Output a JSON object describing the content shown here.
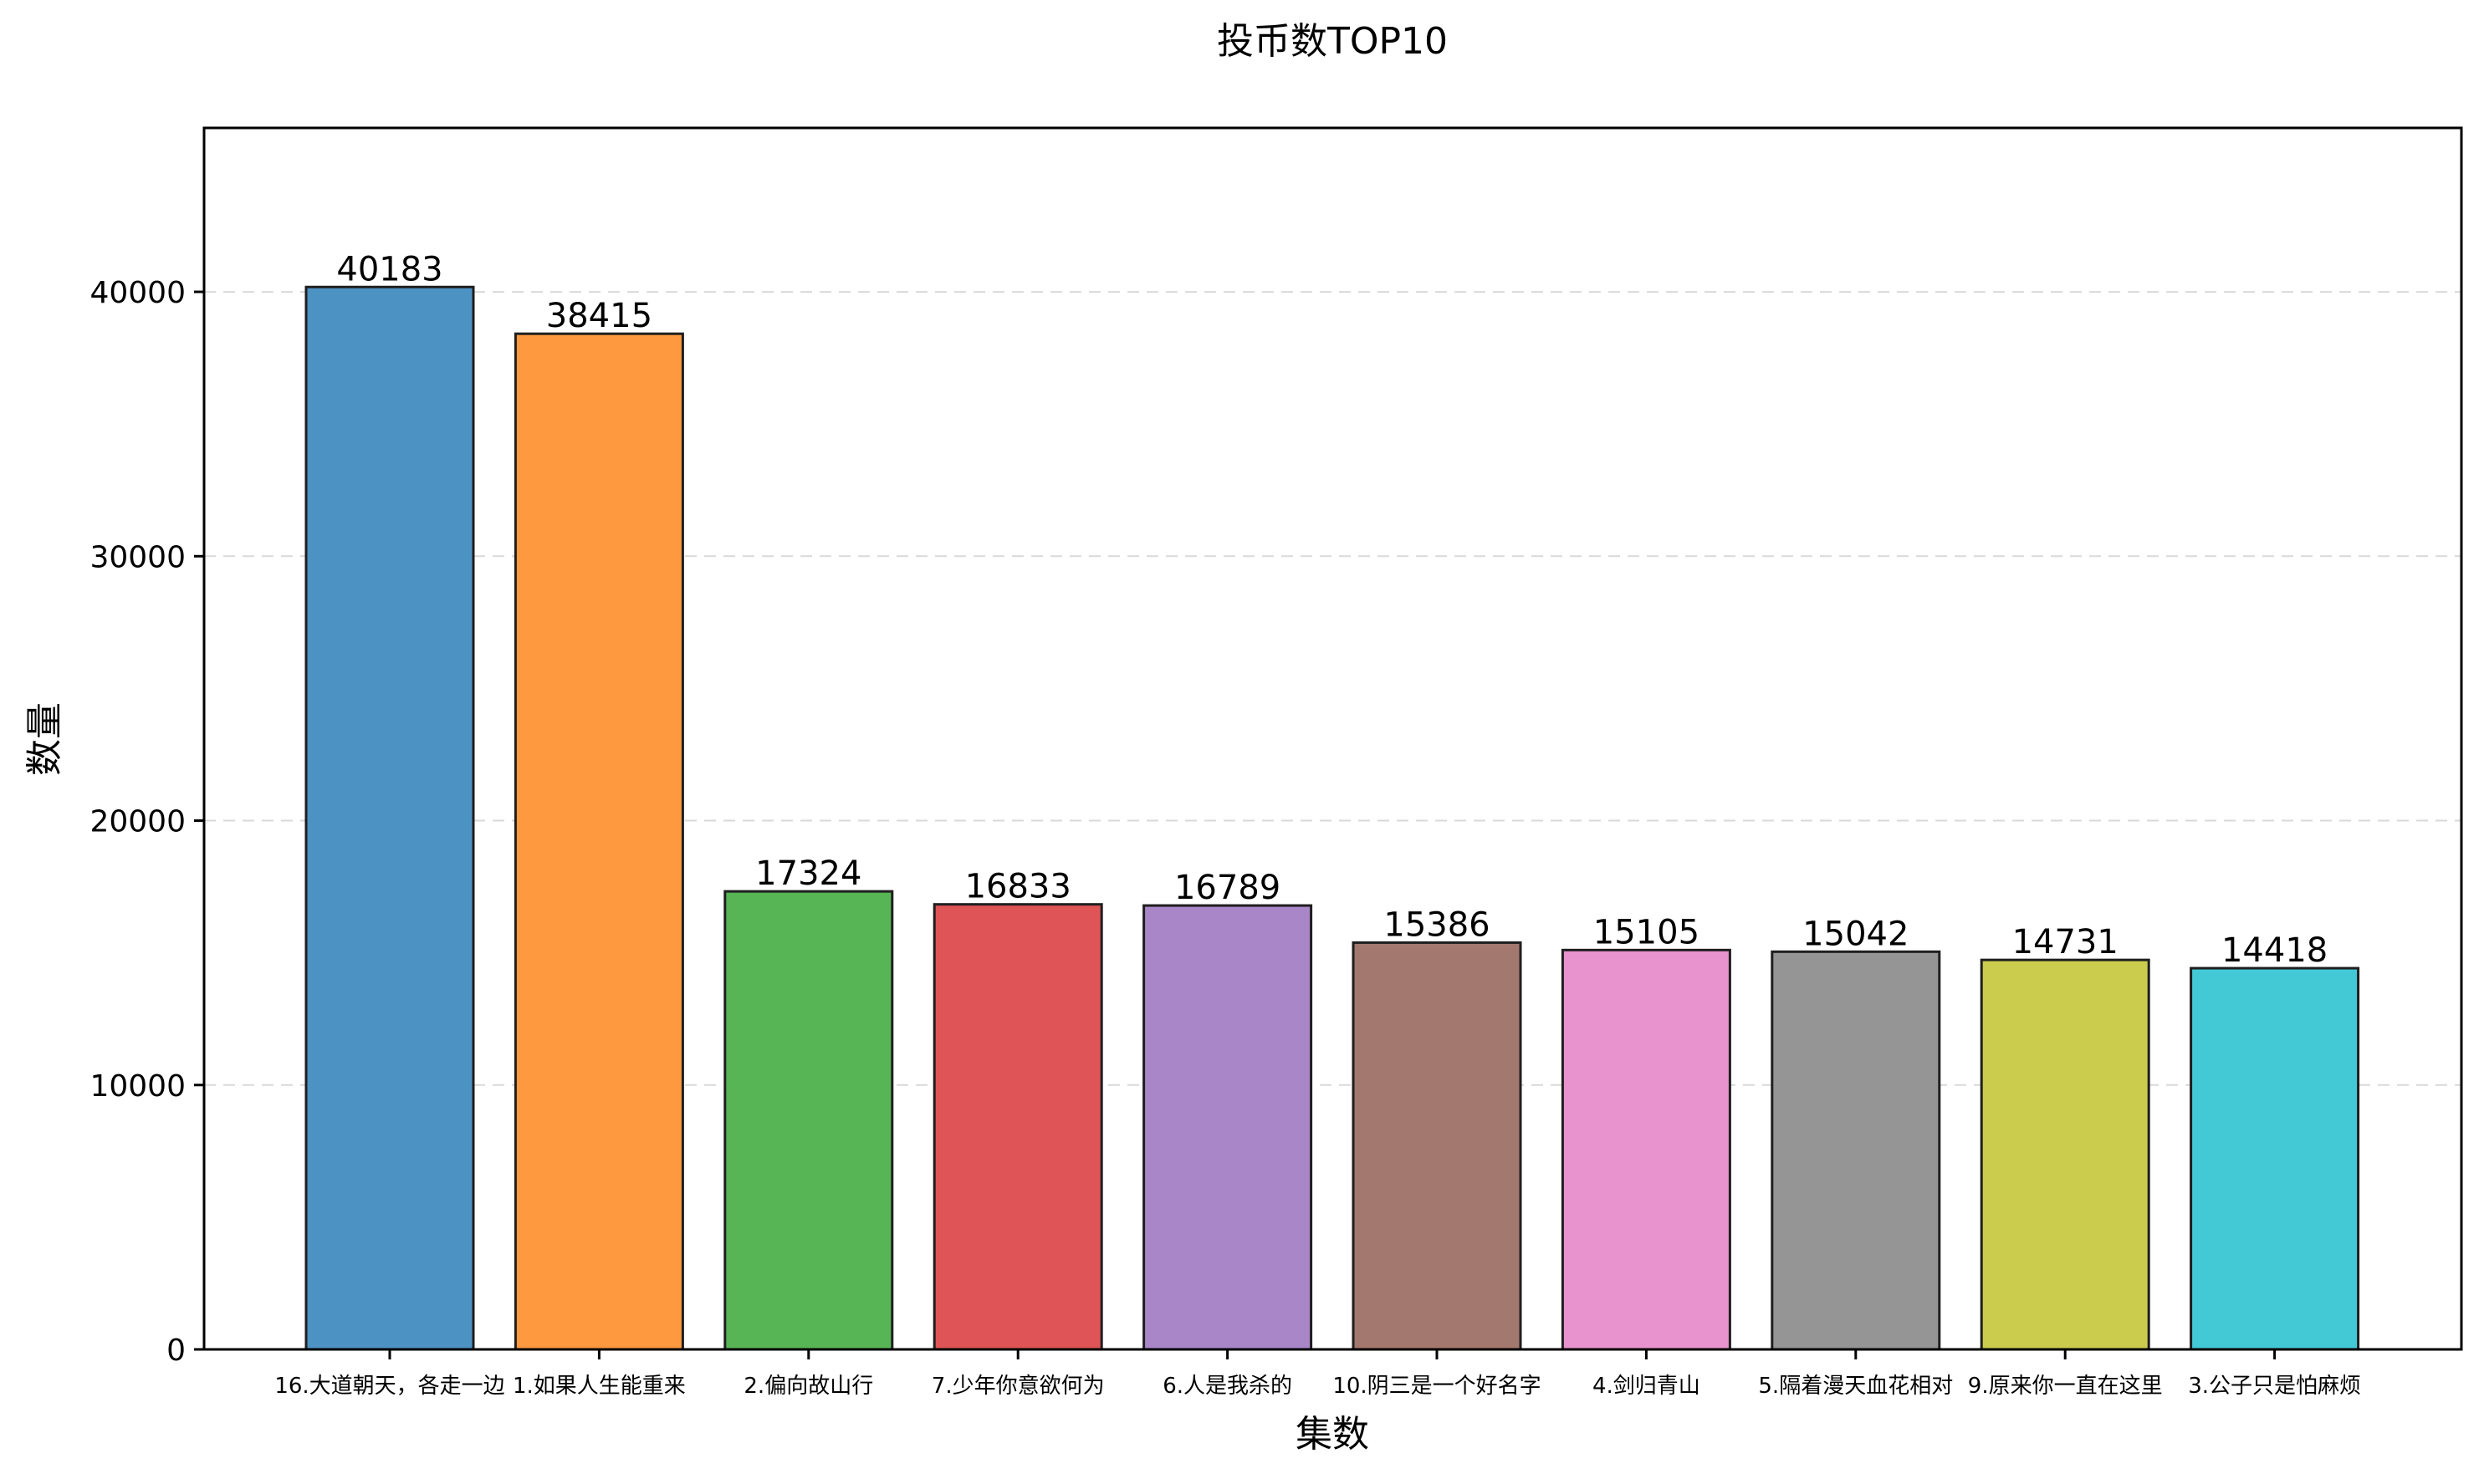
{
  "chart_data": {
    "type": "bar",
    "title": "投币数TOP10",
    "xlabel": "集数",
    "ylabel": "数量",
    "categories": [
      "16.大道朝天，各走一边",
      "1.如果人生能重来",
      "2.偏向故山行",
      "7.少年你意欲何为",
      "6.人是我杀的",
      "10.阴三是一个好名字",
      "4.剑归青山",
      "5.隔着漫天血花相对",
      "9.原来你一直在这里",
      "3.公子只是怕麻烦"
    ],
    "values": [
      40183,
      38415,
      17324,
      16833,
      16789,
      15386,
      15105,
      15042,
      14731,
      14418
    ],
    "colors": [
      "#4c93c3",
      "#ff993f",
      "#57b556",
      "#df5456",
      "#a886c8",
      "#a3786e",
      "#e893cd",
      "#959595",
      "#cbcb4e",
      "#43c9d6"
    ],
    "ylim": [
      0,
      46200
    ],
    "yticks": [
      0,
      10000,
      20000,
      30000,
      40000
    ],
    "grid": "y-dashed",
    "legend": "none"
  }
}
